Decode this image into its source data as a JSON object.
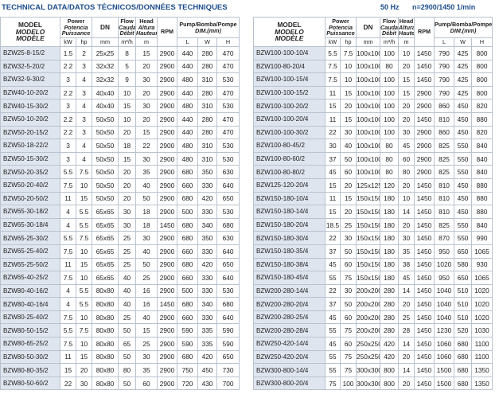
{
  "header": {
    "title": "TECHNICAL DATA/DATOS TÉCNICOS/DONNÉES TECHNIQUES",
    "frequency": "50 Hz",
    "speed": "n=2900/1450 1/min"
  },
  "columns": {
    "model": [
      "MODEL",
      "MODELO",
      "MODÈLE"
    ],
    "power": [
      "Power",
      "Potencia",
      "Puissance"
    ],
    "kw": "kW",
    "hp": "hp",
    "dn": "DN",
    "dn_unit": "mm",
    "flow": [
      "Flow",
      "Caudal",
      "Débit"
    ],
    "flow_unit": "m³/h",
    "head": [
      "Head",
      "Altura",
      "Hauteur"
    ],
    "head_unit": "m",
    "rpm": "RPM",
    "dim": [
      "Pump/Bomba/Pompe",
      "DIM.(mm)"
    ],
    "l": "L",
    "w": "W",
    "h": "H"
  },
  "tables": [
    {
      "rows": [
        [
          "BZW25-8-15/2",
          1.5,
          2,
          "25x25",
          8,
          15,
          2900,
          440,
          280,
          470
        ],
        [
          "BZW32-5-20/2",
          2.2,
          3,
          "32x32",
          5,
          20,
          2900,
          440,
          280,
          470
        ],
        [
          "BZW32-9-30/2",
          3,
          4,
          "32x32",
          9,
          30,
          2900,
          480,
          310,
          530
        ],
        [
          "BZW40-10-20/2",
          2.2,
          3,
          "40x40",
          10,
          20,
          2900,
          440,
          280,
          470
        ],
        [
          "BZW40-15-30/2",
          3,
          4,
          "40x40",
          15,
          30,
          2900,
          480,
          310,
          530
        ],
        [
          "BZW50-10-20/2",
          2.2,
          3,
          "50x50",
          10,
          20,
          2900,
          440,
          280,
          470
        ],
        [
          "BZW50-20-15/2",
          2.2,
          3,
          "50x50",
          20,
          15,
          2900,
          440,
          280,
          470
        ],
        [
          "BZW50-18-22/2",
          3,
          4,
          "50x50",
          18,
          22,
          2900,
          480,
          310,
          530
        ],
        [
          "BZW50-15-30/2",
          3,
          4,
          "50x50",
          15,
          30,
          2900,
          480,
          310,
          530
        ],
        [
          "BZW50-20-35/2",
          5.5,
          7.5,
          "50x50",
          20,
          35,
          2900,
          680,
          350,
          630
        ],
        [
          "BZW50-20-40/2",
          7.5,
          10,
          "50x50",
          20,
          40,
          2900,
          660,
          330,
          640
        ],
        [
          "BZW50-20-50/2",
          11,
          15,
          "50x50",
          20,
          50,
          2900,
          680,
          420,
          650
        ],
        [
          "BZW65-30-18/2",
          4,
          5.5,
          "65x65",
          30,
          18,
          2900,
          500,
          330,
          530
        ],
        [
          "BZW65-30-18/4",
          4,
          5.5,
          "65x65",
          30,
          18,
          1450,
          680,
          340,
          680
        ],
        [
          "BZW65-25-30/2",
          5.5,
          7.5,
          "65x65",
          25,
          30,
          2900,
          680,
          350,
          630
        ],
        [
          "BZW65-25-40/2",
          7.5,
          10,
          "65x65",
          25,
          40,
          2900,
          660,
          330,
          640
        ],
        [
          "BZW65-25-50/2",
          11,
          15,
          "65x65",
          25,
          50,
          2900,
          680,
          420,
          650
        ],
        [
          "BZW65-40-25/2",
          7.5,
          10,
          "65x65",
          40,
          25,
          2900,
          660,
          330,
          640
        ],
        [
          "BZW80-40-16/2",
          4,
          5.5,
          "80x80",
          40,
          16,
          2900,
          500,
          330,
          530
        ],
        [
          "BZW80-40-16/4",
          4,
          5.5,
          "80x80",
          40,
          16,
          1450,
          680,
          340,
          680
        ],
        [
          "BZW80-25-40/2",
          7.5,
          10,
          "80x80",
          25,
          40,
          2900,
          660,
          330,
          640
        ],
        [
          "BZW80-50-15/2",
          5.5,
          7.5,
          "80x80",
          50,
          15,
          2900,
          590,
          335,
          590
        ],
        [
          "BZW80-65-25/2",
          7.5,
          10,
          "80x80",
          65,
          25,
          2900,
          590,
          335,
          590
        ],
        [
          "BZW80-50-30/2",
          11,
          15,
          "80x80",
          50,
          30,
          2900,
          680,
          420,
          650
        ],
        [
          "BZW80-80-35/2",
          15,
          20,
          "80x80",
          80,
          35,
          2900,
          750,
          450,
          730
        ],
        [
          "BZW80-50-60/2",
          22,
          30,
          "80x80",
          50,
          60,
          2900,
          720,
          430,
          700
        ]
      ]
    },
    {
      "rows": [
        [
          "BZW100-100-10/4",
          5.5,
          7.5,
          "100x100",
          100,
          10,
          1450,
          790,
          425,
          800
        ],
        [
          "BZW100-80-20/4",
          7.5,
          10,
          "100x100",
          80,
          20,
          1450,
          790,
          425,
          800
        ],
        [
          "BZW100-100-15/4",
          7.5,
          10,
          "100x100",
          100,
          15,
          1450,
          790,
          425,
          800
        ],
        [
          "BZW100-100-15/2",
          11,
          15,
          "100x100",
          100,
          15,
          2900,
          790,
          425,
          800
        ],
        [
          "BZW100-100-20/2",
          15,
          20,
          "100x100",
          100,
          20,
          2900,
          860,
          450,
          820
        ],
        [
          "BZW100-100-20/4",
          11,
          15,
          "100x100",
          100,
          20,
          1450,
          810,
          450,
          880
        ],
        [
          "BZW100-100-30/2",
          22,
          30,
          "100x100",
          100,
          30,
          2900,
          860,
          450,
          820
        ],
        [
          "BZW100-80-45/2",
          30,
          40,
          "100x100",
          80,
          45,
          2900,
          825,
          550,
          840
        ],
        [
          "BZW100-80-60/2",
          37,
          50,
          "100x100",
          80,
          60,
          2900,
          825,
          550,
          840
        ],
        [
          "BZW100-80-80/2",
          45,
          60,
          "100x100",
          80,
          80,
          2900,
          825,
          550,
          840
        ],
        [
          "BZW125-120-20/4",
          15,
          20,
          "125x125",
          120,
          20,
          1450,
          810,
          450,
          880
        ],
        [
          "BZW150-180-10/4",
          11,
          15,
          "150x150",
          180,
          10,
          1450,
          810,
          450,
          880
        ],
        [
          "BZW150-180-14/4",
          15,
          20,
          "150x150",
          180,
          14,
          1450,
          810,
          450,
          880
        ],
        [
          "BZW150-180-20/4",
          18.5,
          25,
          "150x150",
          180,
          20,
          1450,
          825,
          550,
          840
        ],
        [
          "BZW150-180-30/4",
          22,
          30,
          "150x150",
          180,
          30,
          1450,
          870,
          550,
          990
        ],
        [
          "BZW150-180-35/4",
          37,
          50,
          "150x150",
          180,
          35,
          1450,
          950,
          650,
          1065
        ],
        [
          "BZW150-180-38/4",
          45,
          60,
          "150x150",
          180,
          38,
          1450,
          1020,
          580,
          930
        ],
        [
          "BZW150-180-45/4",
          55,
          75,
          "150x150",
          180,
          45,
          1450,
          950,
          650,
          1065
        ],
        [
          "BZW200-280-14/4",
          22,
          30,
          "200x200",
          280,
          14,
          1450,
          1040,
          510,
          1020
        ],
        [
          "BZW200-280-20/4",
          37,
          50,
          "200x200",
          280,
          20,
          1450,
          1040,
          510,
          1020
        ],
        [
          "BZW200-280-25/4",
          45,
          60,
          "200x200",
          280,
          25,
          1450,
          1040,
          510,
          1020
        ],
        [
          "BZW200-280-28/4",
          55,
          75,
          "200x200",
          280,
          28,
          1450,
          1230,
          520,
          1030
        ],
        [
          "BZW250-420-14/4",
          45,
          60,
          "250x250",
          420,
          14,
          1450,
          1060,
          680,
          1100
        ],
        [
          "BZW250-420-20/4",
          55,
          75,
          "250x250",
          420,
          20,
          1450,
          1060,
          680,
          1100
        ],
        [
          "BZW300-800-14/4",
          55,
          75,
          "300x300",
          800,
          14,
          1450,
          1500,
          680,
          1350
        ],
        [
          "BZW300-800-20/4",
          75,
          100,
          "300x300",
          800,
          20,
          1450,
          1500,
          680,
          1350
        ]
      ]
    }
  ]
}
